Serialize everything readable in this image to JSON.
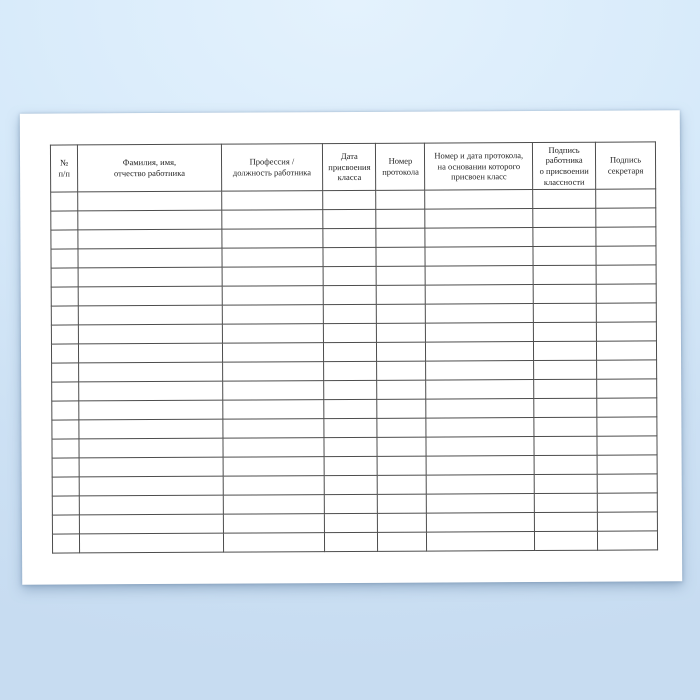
{
  "scene": {
    "background_top_color": "#e4f2fd",
    "background_bottom_color": "#c7dcf1",
    "paper_color": "#ffffff"
  },
  "table": {
    "border_color": "#4d4d4d",
    "column_count": 8,
    "row_count": 19,
    "empty_cell_text": "",
    "headers": [
      {
        "id": "row-number",
        "label": "№\nп/п"
      },
      {
        "id": "employee-name",
        "label": "Фамилия, имя,\nотчество работника"
      },
      {
        "id": "profession",
        "label": "Профессия /\nдолжность работника"
      },
      {
        "id": "class-date",
        "label": "Дата\nприсвоения\nкласса"
      },
      {
        "id": "protocol-number",
        "label": "Номер\nпротокола"
      },
      {
        "id": "protocol-basis",
        "label": "Номер и дата протокола,\nна основании которого\nприсвоен класс"
      },
      {
        "id": "employee-signature",
        "label": "Подпись\nработника\nо присвоении\nклассности"
      },
      {
        "id": "secretary-signature",
        "label": "Подпись\nсекретаря"
      }
    ]
  }
}
